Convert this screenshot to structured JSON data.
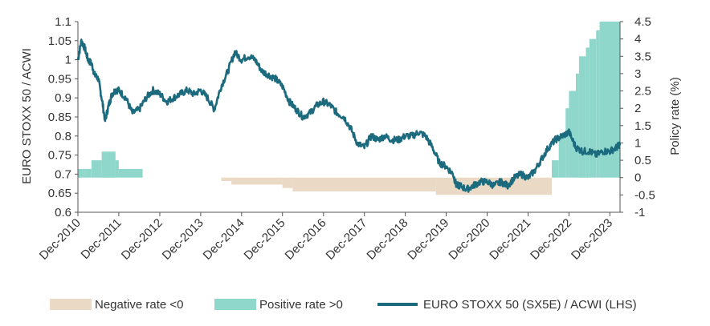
{
  "chart_data": {
    "type": "line",
    "ylabel_left": "EURO STOXX 50 / ACWI",
    "ylabel_right": "Policy rate (%)",
    "left_axis": {
      "min": 0.6,
      "max": 1.1,
      "ticks": [
        "1.1",
        "1.05",
        "1",
        "0.95",
        "0.9",
        "0.85",
        "0.8",
        "0.75",
        "0.7",
        "0.65",
        "0.6"
      ]
    },
    "right_axis": {
      "min": -1,
      "max": 4.5,
      "ticks": [
        "4.5",
        "4",
        "3.5",
        "3",
        "2.5",
        "2",
        "1.5",
        "1",
        "0.5",
        "0",
        "-0.5",
        "-1"
      ]
    },
    "x_ticks": [
      "Dec-2010",
      "Dec-2011",
      "Dec-2012",
      "Dec-2013",
      "Dec-2014",
      "Dec-2015",
      "Dec-2016",
      "Dec-2017",
      "Dec-2018",
      "Dec-2019",
      "Dec-2020",
      "Dec-2021",
      "Dec-2022",
      "Dec-2023"
    ],
    "x_range": [
      "Dec-2010",
      "Mar-2024"
    ],
    "legend": {
      "placement": "bottom",
      "items": [
        {
          "label": "Negative rate <0",
          "color": "#ead9c5",
          "kind": "area"
        },
        {
          "label": "Positive rate >0",
          "color": "#8fd6cb",
          "kind": "area"
        },
        {
          "label": "EURO STOXX 50 (SX5E) / ACWI (LHS)",
          "color": "#1c6a7d",
          "kind": "line"
        }
      ]
    },
    "series": [
      {
        "name": "EURO STOXX 50 (SX5E) / ACWI (LHS)",
        "axis": "left",
        "color": "#1c6a7d",
        "x": [
          "2010-12-01",
          "2011-01-01",
          "2011-02-01",
          "2011-03-01",
          "2011-04-01",
          "2011-05-01",
          "2011-06-01",
          "2011-07-01",
          "2011-08-01",
          "2011-09-01",
          "2011-10-01",
          "2011-11-01",
          "2011-12-01",
          "2012-02-01",
          "2012-04-01",
          "2012-06-01",
          "2012-08-01",
          "2012-10-01",
          "2012-12-01",
          "2013-02-01",
          "2013-04-01",
          "2013-06-01",
          "2013-08-01",
          "2013-10-01",
          "2013-12-01",
          "2014-02-01",
          "2014-04-01",
          "2014-06-01",
          "2014-08-01",
          "2014-10-01",
          "2014-12-01",
          "2015-02-01",
          "2015-04-01",
          "2015-06-01",
          "2015-08-01",
          "2015-10-01",
          "2015-12-01",
          "2016-02-01",
          "2016-04-01",
          "2016-06-01",
          "2016-08-01",
          "2016-10-01",
          "2016-12-01",
          "2017-02-01",
          "2017-04-01",
          "2017-06-01",
          "2017-08-01",
          "2017-10-01",
          "2017-12-01",
          "2018-02-01",
          "2018-04-01",
          "2018-06-01",
          "2018-08-01",
          "2018-10-01",
          "2018-12-01",
          "2019-02-01",
          "2019-04-01",
          "2019-06-01",
          "2019-08-01",
          "2019-10-01",
          "2019-12-01",
          "2020-02-01",
          "2020-03-01",
          "2020-04-01",
          "2020-06-01",
          "2020-08-01",
          "2020-10-01",
          "2020-12-01",
          "2021-02-01",
          "2021-04-01",
          "2021-06-01",
          "2021-08-01",
          "2021-10-01",
          "2021-12-01",
          "2022-02-01",
          "2022-04-01",
          "2022-06-01",
          "2022-08-01",
          "2022-10-01",
          "2022-12-01",
          "2023-02-01",
          "2023-04-01",
          "2023-06-01",
          "2023-08-01",
          "2023-10-01",
          "2023-12-01",
          "2024-02-01",
          "2024-03-01"
        ],
        "y": [
          1.0,
          1.05,
          1.03,
          1.0,
          0.99,
          0.96,
          0.95,
          0.9,
          0.84,
          0.88,
          0.91,
          0.92,
          0.92,
          0.9,
          0.86,
          0.87,
          0.9,
          0.92,
          0.91,
          0.89,
          0.9,
          0.91,
          0.92,
          0.91,
          0.92,
          0.9,
          0.87,
          0.93,
          0.97,
          1.02,
          1.0,
          1.01,
          1.0,
          0.97,
          0.96,
          0.95,
          0.93,
          0.89,
          0.87,
          0.85,
          0.86,
          0.88,
          0.89,
          0.88,
          0.86,
          0.85,
          0.82,
          0.78,
          0.77,
          0.8,
          0.79,
          0.8,
          0.79,
          0.79,
          0.8,
          0.8,
          0.81,
          0.8,
          0.77,
          0.73,
          0.72,
          0.7,
          0.67,
          0.67,
          0.66,
          0.67,
          0.68,
          0.68,
          0.67,
          0.68,
          0.67,
          0.69,
          0.7,
          0.69,
          0.71,
          0.74,
          0.77,
          0.79,
          0.8,
          0.81,
          0.77,
          0.76,
          0.76,
          0.75,
          0.76,
          0.76,
          0.77,
          0.78
        ]
      },
      {
        "name": "Positive rate >0",
        "axis": "right",
        "kind": "step-area",
        "color": "#8fd6cb",
        "x": [
          "2010-12-01",
          "2011-02-01",
          "2011-04-01",
          "2011-07-01",
          "2011-11-01",
          "2011-12-01",
          "2012-07-01",
          "2022-07-01",
          "2022-09-01",
          "2022-11-01",
          "2022-12-01",
          "2023-02-01",
          "2023-03-01",
          "2023-05-01",
          "2023-06-01",
          "2023-08-01",
          "2023-09-01",
          "2024-03-01"
        ],
        "y": [
          0.25,
          0.25,
          0.5,
          0.75,
          0.5,
          0.25,
          0,
          0.5,
          1.25,
          2.0,
          2.5,
          3.0,
          3.5,
          3.75,
          4.0,
          4.25,
          4.5,
          4.5
        ]
      },
      {
        "name": "Negative rate <0",
        "axis": "right",
        "kind": "step-area",
        "color": "#ead9c5",
        "x": [
          "2014-06-01",
          "2014-09-01",
          "2015-12-01",
          "2016-03-01",
          "2019-09-01",
          "2022-07-01"
        ],
        "y": [
          -0.1,
          -0.2,
          -0.3,
          -0.4,
          -0.5,
          0
        ]
      }
    ]
  }
}
